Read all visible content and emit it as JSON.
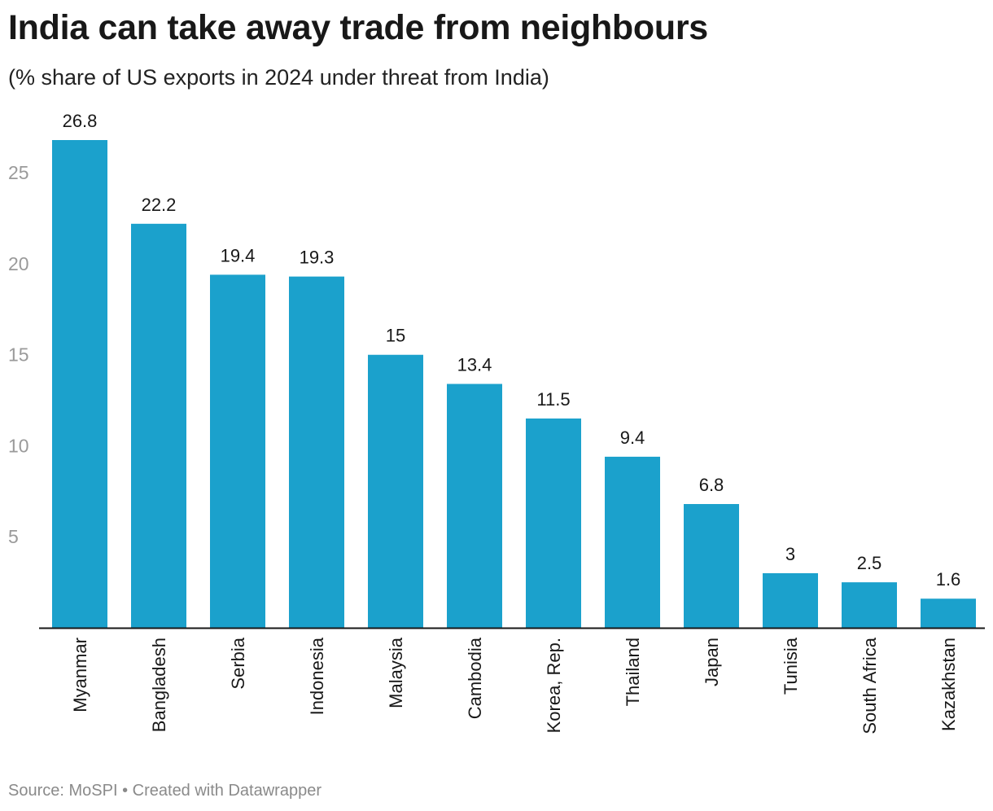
{
  "title": "India can take away trade from neighbours",
  "subtitle": "(% share of US exports in 2024 under threat from India)",
  "footer": {
    "source": "Source: MoSPI",
    "separator": "•",
    "credit": "Created with Datawrapper"
  },
  "colors": {
    "bar": "#1ba1cc",
    "axis_tick_label": "#9a9a9a",
    "value_label": "#181818",
    "category_label": "#181818",
    "baseline": "#181818"
  },
  "chart_data": {
    "type": "bar",
    "title": "India can take away trade from neighbours",
    "subtitle": "(% share of US exports in 2024 under threat from India)",
    "xlabel": "",
    "ylabel": "",
    "categories": [
      "Myanmar",
      "Bangladesh",
      "Serbia",
      "Indonesia",
      "Malaysia",
      "Cambodia",
      "Korea, Rep.",
      "Thailand",
      "Japan",
      "Tunisia",
      "South Africa",
      "Kazakhstan"
    ],
    "values": [
      26.8,
      22.2,
      19.4,
      19.3,
      15,
      13.4,
      11.5,
      9.4,
      6.8,
      3,
      2.5,
      1.6
    ],
    "value_labels": [
      "26.8",
      "22.2",
      "19.4",
      "19.3",
      "15",
      "13.4",
      "11.5",
      "9.4",
      "6.8",
      "3",
      "2.5",
      "1.6"
    ],
    "yticks": [
      5,
      10,
      15,
      20,
      25
    ],
    "ylim": [
      0,
      26.8
    ],
    "grid": false,
    "legend": "none"
  }
}
